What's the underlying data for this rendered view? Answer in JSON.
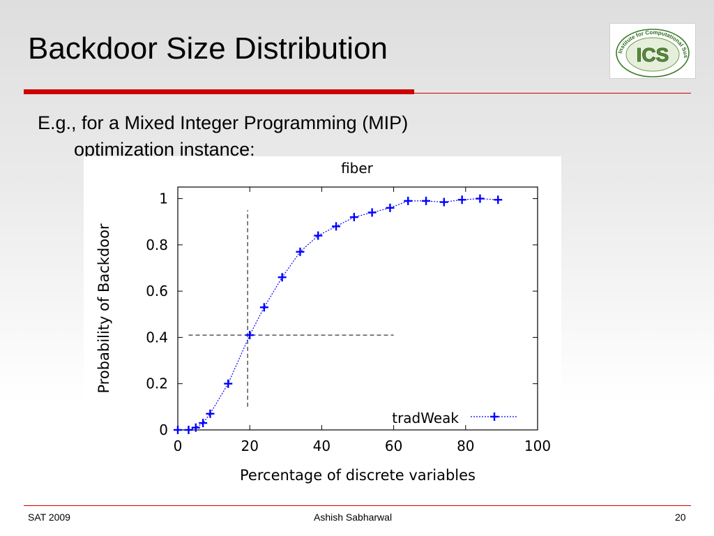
{
  "slide": {
    "title": "Backdoor Size Distribution",
    "bullet_line1": "E.g., for a Mixed Integer Programming (MIP)",
    "bullet_line2": "optimization instance:"
  },
  "logo": {
    "text": "ICS",
    "ring_text": "Institute for Computational Sustainability",
    "colors": {
      "ring": "#3a7a2a",
      "letters": "#5a8c3a"
    }
  },
  "footer": {
    "left": "SAT 2009",
    "center": "Ashish Sabharwal",
    "right": "20"
  },
  "colors": {
    "accent": "#cc0000",
    "series": "#0000ff"
  },
  "chart_data": {
    "type": "line",
    "title": "fiber",
    "xlabel": "Percentage of discrete variables",
    "ylabel": "Probability of Backdoor",
    "xlim": [
      0,
      100
    ],
    "ylim": [
      0,
      1.05
    ],
    "xticks": [
      "0",
      "20",
      "40",
      "60",
      "80",
      "100"
    ],
    "yticks": [
      "0",
      "0.2",
      "0.4",
      "0.6",
      "0.8",
      "1"
    ],
    "legend": "bottom-right",
    "grid": false,
    "series": [
      {
        "name": "tradWeak",
        "marker": "plus",
        "line": "dotted",
        "x": [
          0,
          3,
          5,
          7,
          9,
          14,
          20,
          24,
          29,
          34,
          39,
          44,
          49,
          54,
          59,
          64,
          69,
          74,
          79,
          84,
          89
        ],
        "y": [
          0.0,
          0.0,
          0.01,
          0.03,
          0.07,
          0.2,
          0.41,
          0.53,
          0.66,
          0.77,
          0.84,
          0.88,
          0.92,
          0.94,
          0.96,
          0.99,
          0.99,
          0.985,
          0.995,
          1.0,
          0.995
        ]
      }
    ],
    "annotations": [
      {
        "type": "vline",
        "x": 19.4,
        "y_from": 0.1,
        "y_to": 0.95,
        "style": "dashed"
      },
      {
        "type": "hline",
        "y": 0.41,
        "x_from": 3,
        "x_to": 60,
        "style": "dashed"
      }
    ]
  }
}
